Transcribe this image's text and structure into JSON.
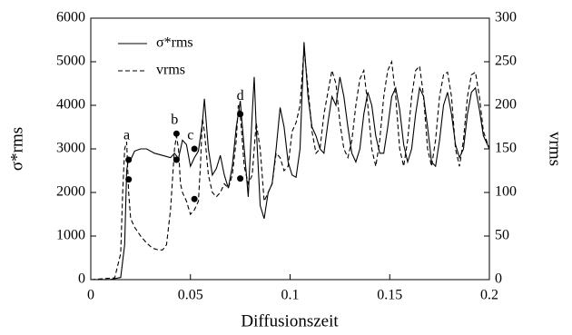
{
  "chart_data": {
    "type": "line",
    "x_label": "Diffusionszeit",
    "y_label": "σ*rms",
    "y2_label": "vrms",
    "xlim": [
      0,
      0.2
    ],
    "xticks": [
      0,
      0.05,
      0.1,
      0.15,
      0.2
    ],
    "ylim": [
      0,
      6000
    ],
    "yticks": [
      0,
      1000,
      2000,
      3000,
      4000,
      5000,
      6000
    ],
    "y2lim": [
      0,
      300
    ],
    "y2ticks": [
      0,
      50,
      100,
      150,
      200,
      250,
      300
    ],
    "legend": "upper-left",
    "series": [
      {
        "name": "σ*rms",
        "color": "#000000",
        "dash": false,
        "x": [
          0,
          0.01,
          0.015,
          0.017,
          0.018,
          0.019,
          0.02,
          0.022,
          0.025,
          0.028,
          0.032,
          0.036,
          0.04,
          0.042,
          0.044,
          0.046,
          0.048,
          0.05,
          0.052,
          0.054,
          0.056,
          0.057,
          0.059,
          0.061,
          0.063,
          0.065,
          0.067,
          0.069,
          0.071,
          0.073,
          0.075,
          0.077,
          0.079,
          0.081,
          0.082,
          0.083,
          0.085,
          0.087,
          0.089,
          0.091,
          0.093,
          0.095,
          0.097,
          0.099,
          0.101,
          0.103,
          0.105,
          0.107,
          0.109,
          0.111,
          0.113,
          0.115,
          0.117,
          0.119,
          0.121,
          0.123,
          0.125,
          0.127,
          0.129,
          0.131,
          0.133,
          0.135,
          0.137,
          0.139,
          0.141,
          0.143,
          0.145,
          0.147,
          0.149,
          0.151,
          0.153,
          0.155,
          0.157,
          0.159,
          0.161,
          0.163,
          0.165,
          0.167,
          0.169,
          0.171,
          0.173,
          0.175,
          0.177,
          0.179,
          0.181,
          0.183,
          0.185,
          0.187,
          0.189,
          0.191,
          0.193,
          0.195,
          0.197,
          0.2
        ],
        "values": [
          0,
          5,
          50,
          800,
          2500,
          2800,
          2750,
          2950,
          3000,
          3000,
          2900,
          2850,
          2800,
          2900,
          2780,
          3200,
          3100,
          2600,
          2800,
          2950,
          3600,
          4150,
          3000,
          2400,
          2550,
          2850,
          2400,
          2100,
          2600,
          3500,
          4100,
          3000,
          1900,
          3800,
          4650,
          3500,
          1700,
          1400,
          2000,
          2200,
          3000,
          3950,
          3500,
          2700,
          2400,
          2350,
          3000,
          5450,
          4200,
          3500,
          3300,
          3000,
          2900,
          3600,
          4200,
          4000,
          4650,
          4200,
          3500,
          2900,
          2700,
          3000,
          3800,
          4300,
          4000,
          3300,
          2900,
          2900,
          3500,
          4200,
          4400,
          3900,
          3100,
          2700,
          3000,
          3800,
          4400,
          4200,
          3500,
          2700,
          2600,
          3200,
          4000,
          4300,
          3800,
          3100,
          2800,
          3000,
          3800,
          4300,
          4400,
          3900,
          3300,
          3000
        ]
      },
      {
        "name": "vrms",
        "color": "#000000",
        "dash": true,
        "axis": "y2",
        "x": [
          0,
          0.012,
          0.015,
          0.016,
          0.017,
          0.018,
          0.019,
          0.02,
          0.022,
          0.025,
          0.028,
          0.031,
          0.034,
          0.036,
          0.038,
          0.04,
          0.042,
          0.043,
          0.044,
          0.045,
          0.046,
          0.048,
          0.05,
          0.052,
          0.054,
          0.055,
          0.056,
          0.057,
          0.059,
          0.061,
          0.063,
          0.065,
          0.067,
          0.069,
          0.071,
          0.073,
          0.074,
          0.075,
          0.077,
          0.079,
          0.081,
          0.083,
          0.085,
          0.087,
          0.089,
          0.091,
          0.093,
          0.095,
          0.097,
          0.099,
          0.101,
          0.103,
          0.105,
          0.107,
          0.109,
          0.111,
          0.113,
          0.115,
          0.117,
          0.119,
          0.121,
          0.123,
          0.125,
          0.127,
          0.129,
          0.131,
          0.133,
          0.135,
          0.137,
          0.139,
          0.141,
          0.143,
          0.145,
          0.147,
          0.149,
          0.151,
          0.153,
          0.155,
          0.157,
          0.159,
          0.161,
          0.163,
          0.165,
          0.167,
          0.169,
          0.171,
          0.173,
          0.175,
          0.177,
          0.179,
          0.181,
          0.183,
          0.185,
          0.187,
          0.189,
          0.191,
          0.193,
          0.195,
          0.197,
          0.2
        ],
        "values": [
          0,
          2,
          30,
          100,
          150,
          158,
          100,
          70,
          60,
          50,
          42,
          36,
          34,
          34,
          40,
          80,
          150,
          165,
          150,
          110,
          100,
          90,
          75,
          80,
          90,
          130,
          185,
          170,
          120,
          100,
          95,
          100,
          110,
          105,
          120,
          160,
          200,
          190,
          130,
          110,
          120,
          180,
          150,
          90,
          100,
          110,
          145,
          140,
          125,
          130,
          170,
          180,
          200,
          265,
          220,
          170,
          145,
          150,
          190,
          215,
          240,
          225,
          180,
          150,
          140,
          160,
          200,
          230,
          240,
          200,
          150,
          130,
          160,
          210,
          240,
          250,
          210,
          150,
          130,
          160,
          210,
          240,
          245,
          210,
          150,
          130,
          160,
          210,
          235,
          238,
          210,
          150,
          130,
          160,
          210,
          235,
          238,
          210,
          170,
          150
        ]
      }
    ],
    "markers": {
      "x": [
        0.019,
        0.019,
        0.043,
        0.043,
        0.052,
        0.052,
        0.075,
        0.075
      ],
      "values": [
        2750,
        2300,
        3350,
        2750,
        3000,
        1850,
        3800,
        2320
      ]
    },
    "annotations": [
      {
        "text": "a",
        "x": 0.018,
        "y": 3300
      },
      {
        "text": "b",
        "x": 0.042,
        "y": 3650
      },
      {
        "text": "c",
        "x": 0.05,
        "y": 3300
      },
      {
        "text": "d",
        "x": 0.075,
        "y": 4200
      }
    ]
  }
}
